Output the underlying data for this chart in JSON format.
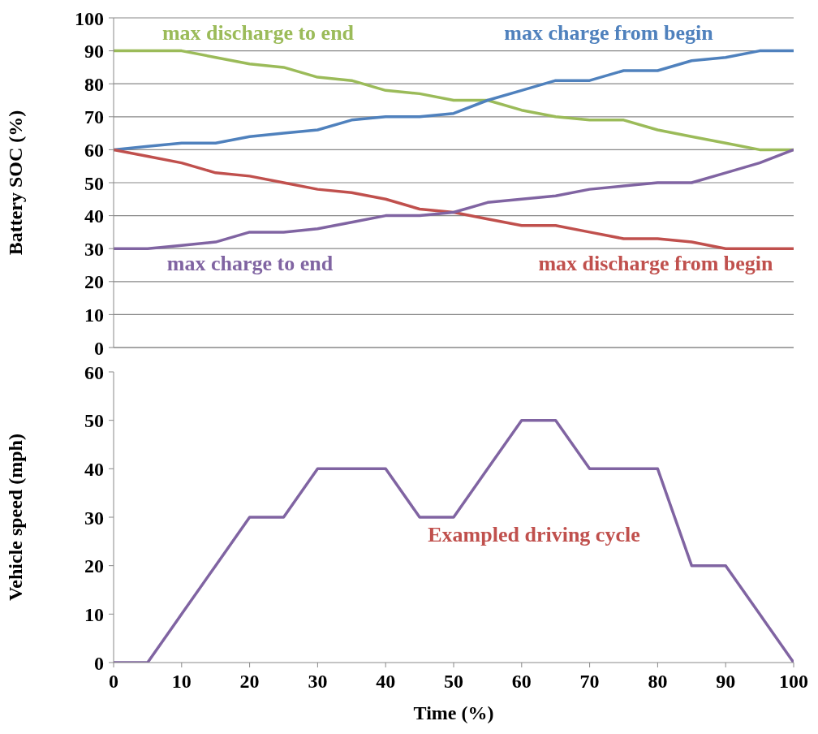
{
  "chart_data": [
    {
      "type": "line",
      "ylabel": "Battery SOC (%)",
      "x": [
        0,
        5,
        10,
        15,
        20,
        25,
        30,
        35,
        40,
        45,
        50,
        55,
        60,
        65,
        70,
        75,
        80,
        85,
        90,
        95,
        100
      ],
      "xlim": [
        0,
        100
      ],
      "xticks": [
        0,
        10,
        20,
        30,
        40,
        50,
        60,
        70,
        80,
        90,
        100
      ],
      "ylim": [
        0,
        100
      ],
      "yticks": [
        0,
        10,
        20,
        30,
        40,
        50,
        60,
        70,
        80,
        90,
        100
      ],
      "grid": "y",
      "tick_labels": "y",
      "marker": "none",
      "legend": false,
      "series": [
        {
          "name": "max discharge to end",
          "color": "#9bbb59",
          "values": [
            90,
            90,
            90,
            88,
            86,
            85,
            82,
            81,
            78,
            77,
            75,
            75,
            72,
            70,
            69,
            69,
            66,
            64,
            62,
            60,
            60
          ]
        },
        {
          "name": "max charge from begin",
          "color": "#4f81bd",
          "values": [
            60,
            61,
            62,
            62,
            64,
            65,
            66,
            69,
            70,
            70,
            71,
            75,
            78,
            81,
            81,
            84,
            84,
            87,
            88,
            90,
            90
          ]
        },
        {
          "name": "max discharge from begin",
          "color": "#c0504d",
          "values": [
            60,
            58,
            56,
            53,
            52,
            50,
            48,
            47,
            45,
            42,
            41,
            39,
            37,
            37,
            35,
            33,
            33,
            32,
            30,
            30,
            30
          ]
        },
        {
          "name": "max charge to end",
          "color": "#8064a2",
          "values": [
            30,
            30,
            31,
            32,
            35,
            35,
            36,
            38,
            40,
            40,
            41,
            44,
            45,
            46,
            48,
            49,
            50,
            50,
            53,
            56,
            60
          ]
        }
      ]
    },
    {
      "type": "line",
      "xlabel": "Time (%)",
      "ylabel": "Vehicle speed (mph)",
      "x": [
        0,
        5,
        10,
        15,
        20,
        25,
        30,
        35,
        40,
        45,
        50,
        55,
        60,
        65,
        70,
        75,
        80,
        85,
        90,
        95,
        100
      ],
      "xlim": [
        0,
        100
      ],
      "xticks": [
        0,
        10,
        20,
        30,
        40,
        50,
        60,
        70,
        80,
        90,
        100
      ],
      "ylim": [
        0,
        60
      ],
      "yticks": [
        0,
        10,
        20,
        30,
        40,
        50,
        60
      ],
      "grid": false,
      "marker": "none",
      "legend": false,
      "annotations": [
        "Exampled driving cycle"
      ],
      "series": [
        {
          "color": "#8064a2",
          "values": [
            0,
            0,
            10,
            20,
            30,
            30,
            40,
            40,
            40,
            30,
            30,
            40,
            50,
            50,
            40,
            40,
            40,
            20,
            20,
            10,
            0
          ]
        }
      ]
    }
  ]
}
